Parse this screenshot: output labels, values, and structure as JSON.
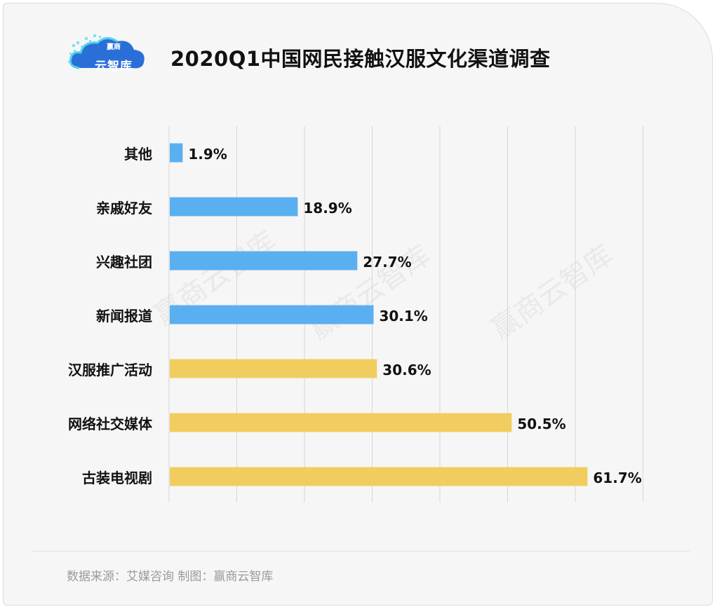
{
  "logo": {
    "brand_small": "赢商",
    "brand_main": "云智库"
  },
  "title": "2020Q1中国网民接触汉服文化渠道调查",
  "watermark": "赢商云智库",
  "source": "数据来源：艾媒咨询  制图：赢商云智库",
  "colors": {
    "blue": "#5aaff0",
    "yellow": "#f1cd5f",
    "grid": "#d6d6d6"
  },
  "chart_data": {
    "type": "bar",
    "orientation": "horizontal",
    "categories": [
      "其他",
      "亲戚好友",
      "兴趣社团",
      "新闻报道",
      "汉服推广活动",
      "网络社交媒体",
      "古装电视剧"
    ],
    "values": [
      1.9,
      18.9,
      27.7,
      30.1,
      30.6,
      50.5,
      61.7
    ],
    "value_labels": [
      "1.9%",
      "18.9%",
      "27.7%",
      "30.1%",
      "30.6%",
      "50.5%",
      "61.7%"
    ],
    "bar_colors": [
      "#5aaff0",
      "#5aaff0",
      "#5aaff0",
      "#5aaff0",
      "#f1cd5f",
      "#f1cd5f",
      "#f1cd5f"
    ],
    "xlim": [
      0,
      70
    ],
    "grid": true,
    "title": "2020Q1中国网民接触汉服文化渠道调查"
  }
}
